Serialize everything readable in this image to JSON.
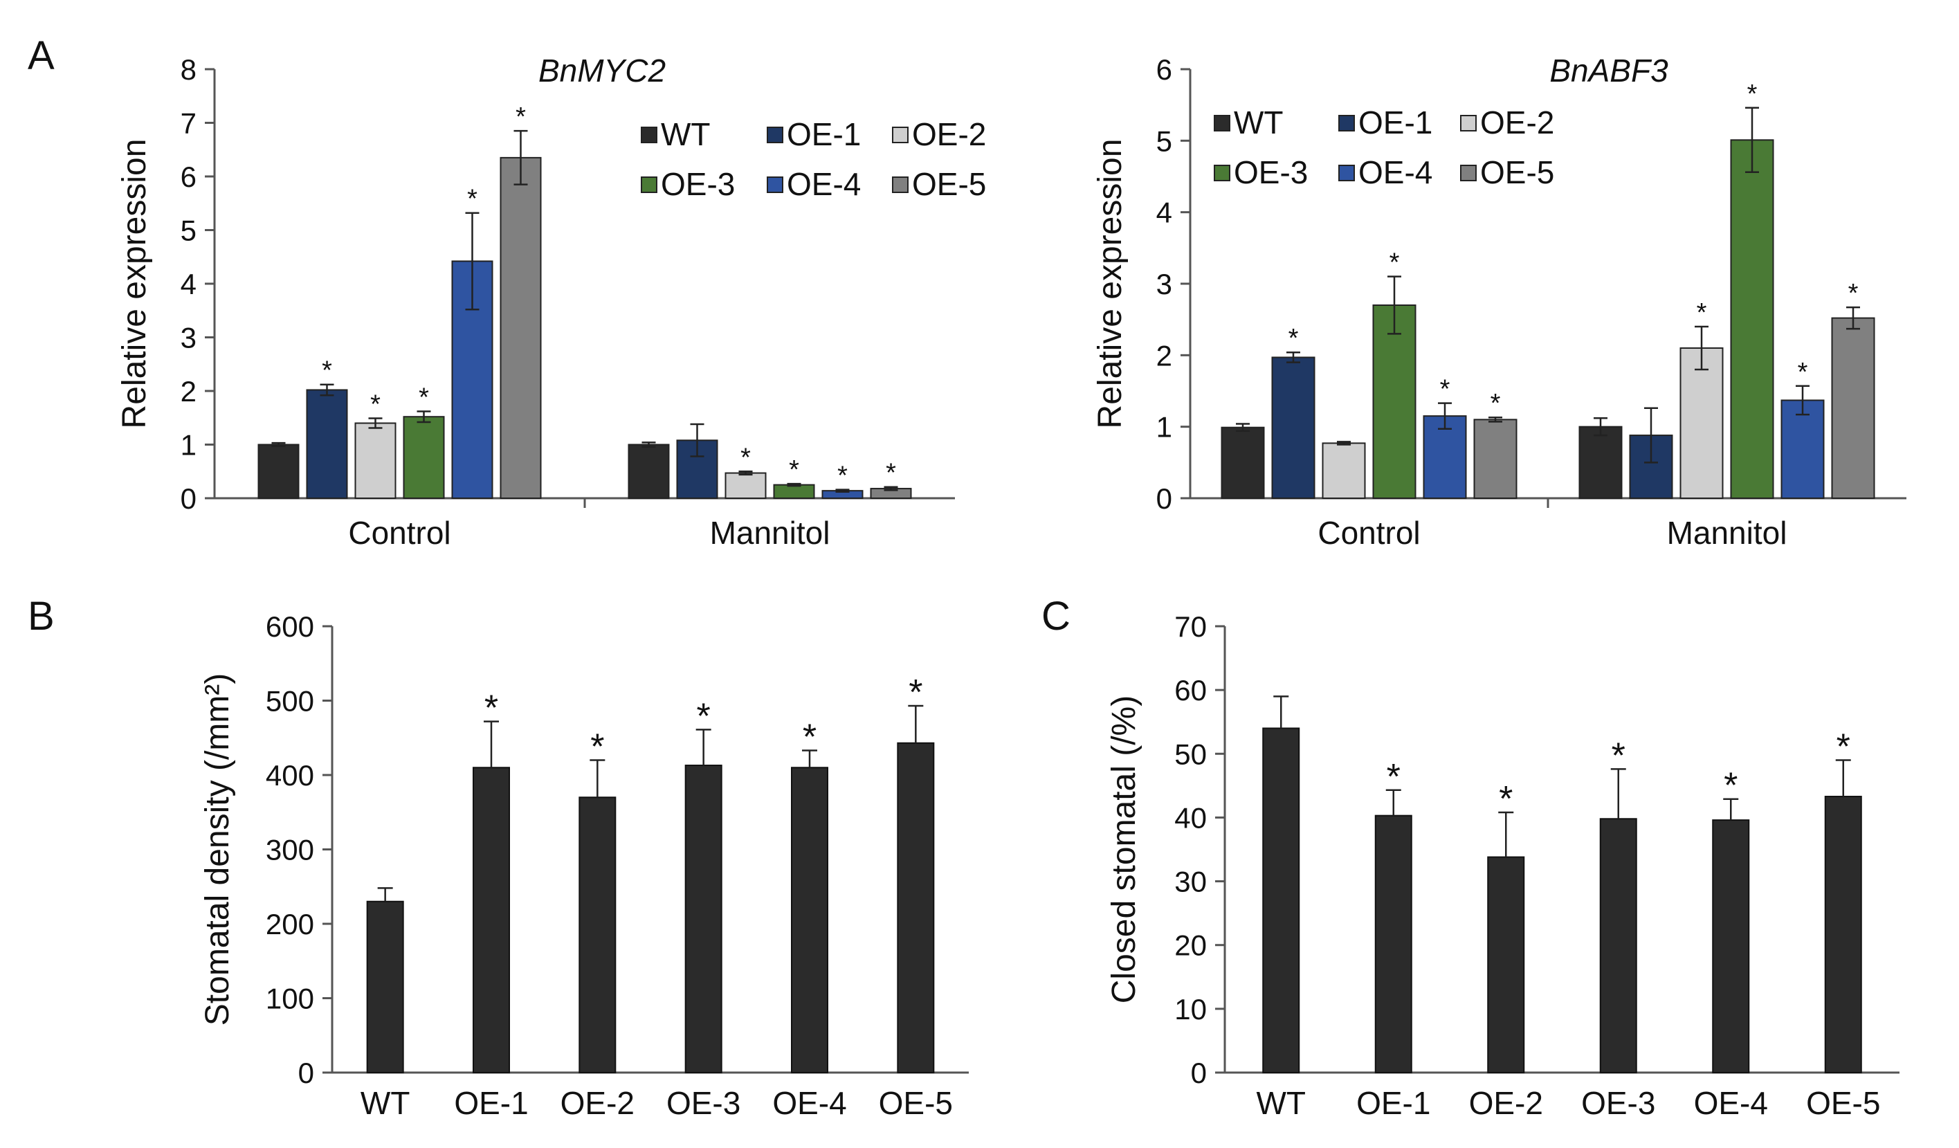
{
  "panels": {
    "a": "A",
    "b": "B",
    "c": "C"
  },
  "chart_data": [
    {
      "id": "A1",
      "type": "bar",
      "title": "BnMYC2",
      "ylabel": "Relative expression",
      "ylim": [
        0,
        8
      ],
      "yticks": [
        0,
        1,
        2,
        3,
        4,
        5,
        6,
        7,
        8
      ],
      "groups": [
        "Control",
        "Mannitol"
      ],
      "legend": [
        "WT",
        "OE-1",
        "OE-2",
        "OE-3",
        "OE-4",
        "OE-5"
      ],
      "legend_position": "top-right",
      "colors": [
        "#2b2b2b",
        "#1f3864",
        "#cfcfcf",
        "#4a7a35",
        "#2f54a1",
        "#808080"
      ],
      "series": [
        {
          "name": "WT",
          "values": [
            1.0,
            1.0
          ],
          "errors": [
            0.03,
            0.04
          ],
          "sig": [
            false,
            false
          ]
        },
        {
          "name": "OE-1",
          "values": [
            2.02,
            1.08
          ],
          "errors": [
            0.1,
            0.3
          ],
          "sig": [
            true,
            false
          ]
        },
        {
          "name": "OE-2",
          "values": [
            1.4,
            0.47
          ],
          "errors": [
            0.09,
            0.03
          ],
          "sig": [
            true,
            true
          ]
        },
        {
          "name": "OE-3",
          "values": [
            1.52,
            0.25
          ],
          "errors": [
            0.1,
            0.02
          ],
          "sig": [
            true,
            true
          ]
        },
        {
          "name": "OE-4",
          "values": [
            4.42,
            0.14
          ],
          "errors": [
            0.9,
            0.02
          ],
          "sig": [
            true,
            true
          ]
        },
        {
          "name": "OE-5",
          "values": [
            6.35,
            0.18
          ],
          "errors": [
            0.5,
            0.03
          ],
          "sig": [
            true,
            true
          ]
        }
      ],
      "sig_mark": "*"
    },
    {
      "id": "A2",
      "type": "bar",
      "title": "BnABF3",
      "ylabel": "Relative expression",
      "ylim": [
        0,
        6
      ],
      "yticks": [
        0,
        1,
        2,
        3,
        4,
        5,
        6
      ],
      "groups": [
        "Control",
        "Mannitol"
      ],
      "legend": [
        "WT",
        "OE-1",
        "OE-2",
        "OE-3",
        "OE-4",
        "OE-5"
      ],
      "legend_position": "top-left",
      "colors": [
        "#2b2b2b",
        "#1f3864",
        "#cfcfcf",
        "#4a7a35",
        "#2f54a1",
        "#808080"
      ],
      "series": [
        {
          "name": "WT",
          "values": [
            0.99,
            1.0
          ],
          "errors": [
            0.05,
            0.12
          ],
          "sig": [
            false,
            false
          ]
        },
        {
          "name": "OE-1",
          "values": [
            1.97,
            0.88
          ],
          "errors": [
            0.07,
            0.38
          ],
          "sig": [
            true,
            false
          ]
        },
        {
          "name": "OE-2",
          "values": [
            0.77,
            2.1
          ],
          "errors": [
            0.02,
            0.3
          ],
          "sig": [
            false,
            true
          ]
        },
        {
          "name": "OE-3",
          "values": [
            2.7,
            5.01
          ],
          "errors": [
            0.4,
            0.45
          ],
          "sig": [
            true,
            true
          ]
        },
        {
          "name": "OE-4",
          "values": [
            1.15,
            1.37
          ],
          "errors": [
            0.18,
            0.2
          ],
          "sig": [
            true,
            true
          ]
        },
        {
          "name": "OE-5",
          "values": [
            1.1,
            2.52
          ],
          "errors": [
            0.03,
            0.15
          ],
          "sig": [
            true,
            true
          ]
        }
      ],
      "sig_mark": "*"
    },
    {
      "id": "B",
      "type": "bar",
      "ylabel": "Stomatal density (/mm²)",
      "ylim": [
        0,
        600
      ],
      "yticks": [
        0,
        100,
        200,
        300,
        400,
        500,
        600
      ],
      "categories": [
        "WT",
        "OE-1",
        "OE-2",
        "OE-3",
        "OE-4",
        "OE-5"
      ],
      "values": [
        230,
        410,
        370,
        413,
        410,
        443
      ],
      "errors": [
        18,
        62,
        50,
        48,
        23,
        50
      ],
      "sig": [
        false,
        true,
        true,
        true,
        true,
        true
      ],
      "sig_mark": "*",
      "color": "#2b2b2b"
    },
    {
      "id": "C",
      "type": "bar",
      "ylabel": "Closed stomatal (/%)",
      "ylim": [
        0,
        70
      ],
      "yticks": [
        0,
        10,
        20,
        30,
        40,
        50,
        60,
        70
      ],
      "categories": [
        "WT",
        "OE-1",
        "OE-2",
        "OE-3",
        "OE-4",
        "OE-5"
      ],
      "values": [
        54,
        40.3,
        33.8,
        39.8,
        39.6,
        43.3
      ],
      "errors": [
        5,
        4,
        7,
        7.8,
        3.3,
        5.7
      ],
      "sig": [
        false,
        true,
        true,
        true,
        true,
        true
      ],
      "sig_mark": "*",
      "color": "#2b2b2b"
    }
  ]
}
